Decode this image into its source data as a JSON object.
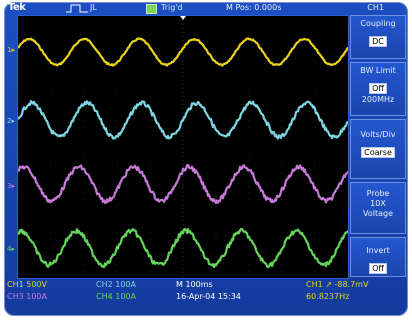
{
  "topbar": {
    "brand": "Tek",
    "trigger_mode": "JL",
    "trigger_label": "Trig'd",
    "horizontal_position": "M Pos: 0.000s",
    "active_channel": "CH1"
  },
  "side_menu": [
    {
      "title": "Coupling",
      "value": "DC"
    },
    {
      "title": "BW Limit",
      "value": "Off",
      "sub": "200MHz"
    },
    {
      "title": "Volts/Div",
      "value": "Coarse"
    },
    {
      "title": "Probe",
      "sub": "10X",
      "sub2": "Voltage"
    },
    {
      "title": "Invert",
      "value": "Off"
    }
  ],
  "channel_markers": [
    "1",
    "2",
    "3",
    "4"
  ],
  "status": {
    "ch1": "CH1  500V",
    "ch2": "CH2  100A",
    "ch3": "CH3  100A",
    "ch4": "CH4  100A",
    "timebase": "M 100ms",
    "date": "16-Apr-04 15:34",
    "trigger_level": "CH1 ↗ -88.7mV",
    "frequency": "60.8237Hz"
  },
  "colors": {
    "ch1": "#e8d21c",
    "ch2": "#7fd6e3",
    "ch3": "#c57ad6",
    "ch4": "#66d35a",
    "bezel": "#1d4fc2"
  },
  "traces": {
    "cycles": 6
  }
}
